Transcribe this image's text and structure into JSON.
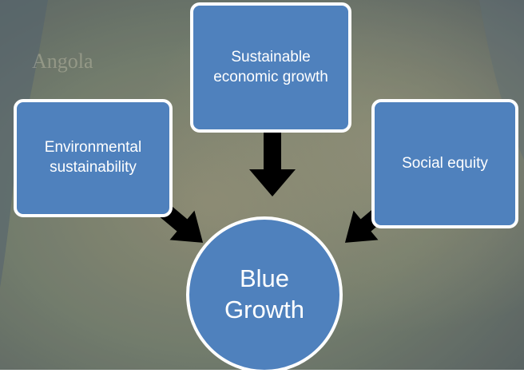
{
  "background": {
    "map_label": "Angola"
  },
  "nodes": [
    {
      "label": "Sustainable economic growth"
    },
    {
      "label": "Environmental sustainability"
    },
    {
      "label": "Social equity"
    },
    {
      "label": "Blue Growth"
    }
  ]
}
